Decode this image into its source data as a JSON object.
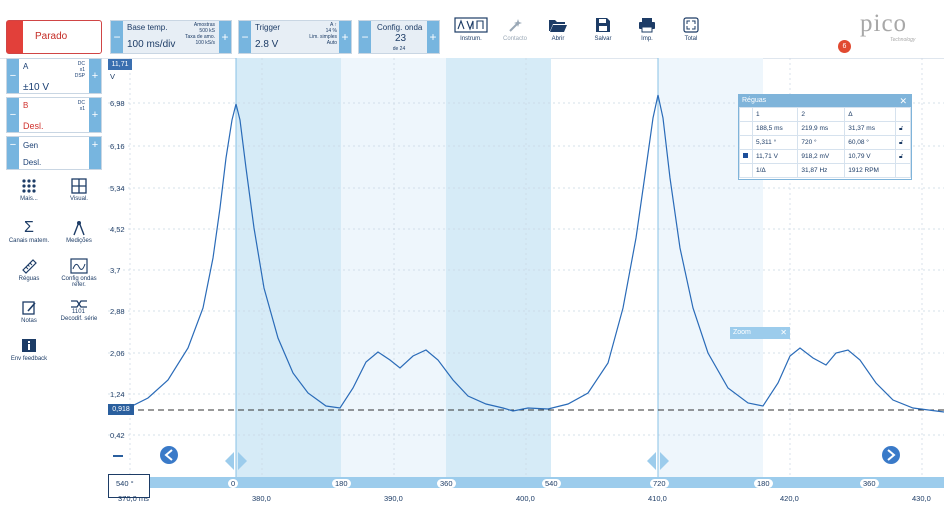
{
  "toolbar": {
    "stop_label": "Parado",
    "timebase": {
      "title": "Base temp.",
      "value": "100 ms/div",
      "samples_label": "Amostras",
      "samples_value": "500 kS",
      "rate_label": "Taxa de amo.",
      "rate_value": "100 kS/s"
    },
    "trigger": {
      "title": "Trigger",
      "value": "2.8 V",
      "channel": "A",
      "edge": "↑",
      "percent": "14 %",
      "mode_label": "Lim. simples",
      "mode_value": "Auto"
    },
    "waveform": {
      "title": "Config. onda",
      "value": "23",
      "sub": "de 24"
    },
    "buttons": {
      "instrum": "Instrum.",
      "contacto": "Contacto",
      "abrir": "Abrir",
      "salvar": "Salvar",
      "imp": "Imp.",
      "total": "Total"
    },
    "logo_text": "pico",
    "logo_sub": "Technology",
    "notification_count": "6"
  },
  "sidebar": {
    "channel_a": {
      "name": "A",
      "range": "±10 V",
      "coupling": "DC",
      "probe": "x1",
      "dsp": "DSP"
    },
    "channel_b": {
      "name": "B",
      "state": "Desl.",
      "coupling": "DC",
      "probe": "x1"
    },
    "gen": {
      "name": "Gen",
      "state": "Desl."
    },
    "tools": [
      {
        "label": "Mais..."
      },
      {
        "label": "Visual."
      },
      {
        "label": "Canais matem."
      },
      {
        "label": "Medições"
      },
      {
        "label": "Réguas"
      },
      {
        "label": "Config ondas refer."
      },
      {
        "label": "Notas"
      },
      {
        "label": "Decodif. série"
      },
      {
        "label": "Env feedback"
      }
    ]
  },
  "plot": {
    "y_unit": "V",
    "y_ruler_value": "11,71",
    "y_labels": [
      "6,98",
      "6,16",
      "5,34",
      "4,52",
      "3,7",
      "2,88",
      "2,06",
      "1,24",
      "0,42"
    ],
    "x_labels": [
      "370,0 ms",
      "380,0",
      "390,0",
      "400,0",
      "410,0",
      "420,0",
      "430,0"
    ],
    "baseline_label": "0,918",
    "angle_labels": [
      "540 °",
      "0",
      "180",
      "360",
      "540",
      "720",
      "180",
      "360"
    ],
    "zoom_label": "Zoom"
  },
  "rulers": {
    "title": "Réguas",
    "col1": "1",
    "col2": "2",
    "col3": "Δ",
    "time": {
      "v1": "188,5 ms",
      "v2": "219,9 ms",
      "d": "31,37 ms"
    },
    "angle": {
      "v1": "5,311 °",
      "v2": "720 °",
      "d": "60,08 °"
    },
    "volt": {
      "v1": "11,71 V",
      "v2": "918,2 mV",
      "d": "10,79 V"
    },
    "freq": {
      "label": "1/Δ",
      "hz": "31,87 Hz",
      "rpm": "1912 RPM"
    }
  },
  "colors": {
    "trace": "#2a6bb8",
    "accent": "#77b5df",
    "stop": "#e2403a",
    "band": "#d6ebf7"
  }
}
